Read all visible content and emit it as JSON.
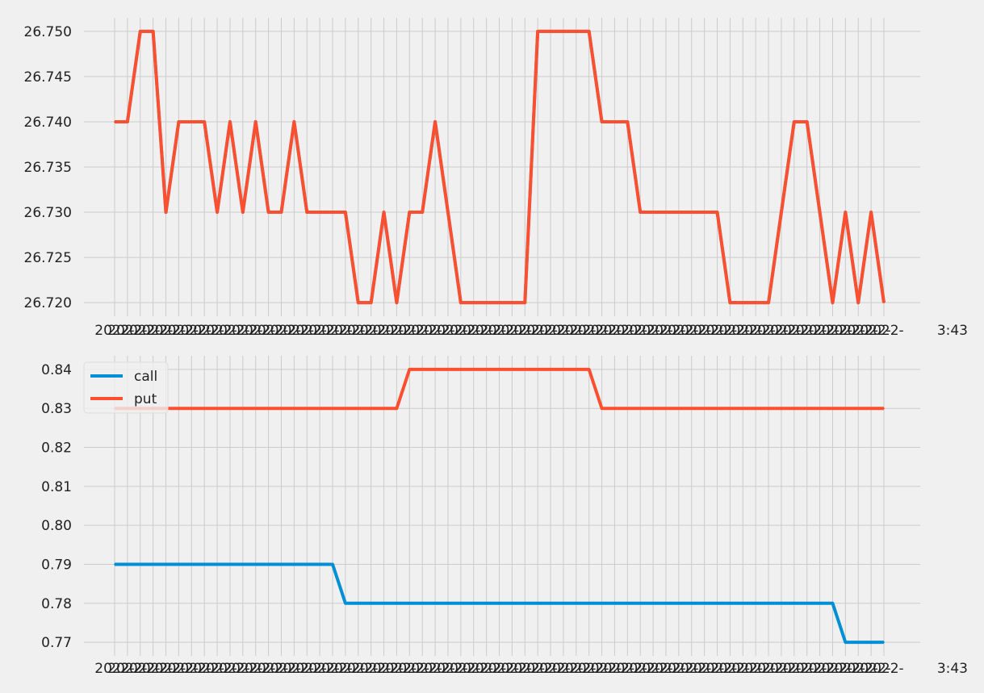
{
  "figure": {
    "background": "#f0f0f0",
    "grid_color": "#cbcbcb"
  },
  "chart_data": [
    {
      "type": "line",
      "title": "",
      "xlabel": "",
      "ylabel": "",
      "x_tick_text": "2022-",
      "x_tick_end_label": "3:43",
      "ylim": [
        26.7185,
        26.7515
      ],
      "yticks": [
        26.72,
        26.725,
        26.73,
        26.735,
        26.74,
        26.745,
        26.75
      ],
      "ytick_labels": [
        "26.720",
        "26.725",
        "26.730",
        "26.735",
        "26.740",
        "26.745",
        "26.750"
      ],
      "grid": true,
      "legend": null,
      "series": [
        {
          "color": "#30a2da",
          "values": [
            26.74,
            26.74,
            26.75,
            26.75,
            26.73,
            26.74,
            26.74,
            26.74,
            26.73,
            26.74,
            26.73,
            26.74,
            26.73,
            26.73,
            26.74,
            26.73,
            26.73,
            26.73,
            26.73,
            26.72,
            26.72,
            26.73,
            26.72,
            26.73,
            26.73,
            26.74,
            26.73,
            26.72,
            26.72,
            26.72,
            26.72,
            26.72,
            26.72,
            26.75,
            26.75,
            26.75,
            26.75,
            26.75,
            26.74,
            26.74,
            26.74,
            26.73,
            26.73,
            26.73,
            26.73,
            26.73,
            26.73,
            26.73,
            26.72,
            26.72,
            26.72,
            26.72,
            26.73,
            26.74,
            26.74,
            26.73,
            26.72,
            26.73,
            26.72,
            26.73,
            26.72
          ]
        },
        {
          "color": "#fc4f30",
          "values": [
            26.74,
            26.74,
            26.75,
            26.75,
            26.73,
            26.74,
            26.74,
            26.74,
            26.73,
            26.74,
            26.73,
            26.74,
            26.73,
            26.73,
            26.74,
            26.73,
            26.73,
            26.73,
            26.73,
            26.72,
            26.72,
            26.73,
            26.72,
            26.73,
            26.73,
            26.74,
            26.73,
            26.72,
            26.72,
            26.72,
            26.72,
            26.72,
            26.72,
            26.75,
            26.75,
            26.75,
            26.75,
            26.75,
            26.74,
            26.74,
            26.74,
            26.73,
            26.73,
            26.73,
            26.73,
            26.73,
            26.73,
            26.73,
            26.72,
            26.72,
            26.72,
            26.72,
            26.73,
            26.74,
            26.74,
            26.73,
            26.72,
            26.73,
            26.72,
            26.73,
            26.72
          ]
        }
      ]
    },
    {
      "type": "line",
      "title": "",
      "xlabel": "",
      "ylabel": "",
      "x_tick_text": "2022-",
      "x_tick_end_label": "3:43",
      "ylim": [
        0.7665,
        0.8435
      ],
      "yticks": [
        0.77,
        0.78,
        0.79,
        0.8,
        0.81,
        0.82,
        0.83,
        0.84
      ],
      "ytick_labels": [
        "0.77",
        "0.78",
        "0.79",
        "0.80",
        "0.81",
        "0.82",
        "0.83",
        "0.84"
      ],
      "grid": true,
      "legend": "upper-left",
      "series": [
        {
          "name": "call",
          "color": "#008fd5",
          "values": [
            0.79,
            0.79,
            0.79,
            0.79,
            0.79,
            0.79,
            0.79,
            0.79,
            0.79,
            0.79,
            0.79,
            0.79,
            0.79,
            0.79,
            0.79,
            0.79,
            0.79,
            0.79,
            0.78,
            0.78,
            0.78,
            0.78,
            0.78,
            0.78,
            0.78,
            0.78,
            0.78,
            0.78,
            0.78,
            0.78,
            0.78,
            0.78,
            0.78,
            0.78,
            0.78,
            0.78,
            0.78,
            0.78,
            0.78,
            0.78,
            0.78,
            0.78,
            0.78,
            0.78,
            0.78,
            0.78,
            0.78,
            0.78,
            0.78,
            0.78,
            0.78,
            0.78,
            0.78,
            0.78,
            0.78,
            0.78,
            0.78,
            0.77,
            0.77,
            0.77,
            0.77
          ]
        },
        {
          "name": "put",
          "color": "#fc4f30",
          "values": [
            0.83,
            0.83,
            0.83,
            0.83,
            0.83,
            0.83,
            0.83,
            0.83,
            0.83,
            0.83,
            0.83,
            0.83,
            0.83,
            0.83,
            0.83,
            0.83,
            0.83,
            0.83,
            0.83,
            0.83,
            0.83,
            0.83,
            0.83,
            0.84,
            0.84,
            0.84,
            0.84,
            0.84,
            0.84,
            0.84,
            0.84,
            0.84,
            0.84,
            0.84,
            0.84,
            0.84,
            0.84,
            0.84,
            0.83,
            0.83,
            0.83,
            0.83,
            0.83,
            0.83,
            0.83,
            0.83,
            0.83,
            0.83,
            0.83,
            0.83,
            0.83,
            0.83,
            0.83,
            0.83,
            0.83,
            0.83,
            0.83,
            0.83,
            0.83,
            0.83,
            0.83
          ]
        }
      ]
    }
  ]
}
